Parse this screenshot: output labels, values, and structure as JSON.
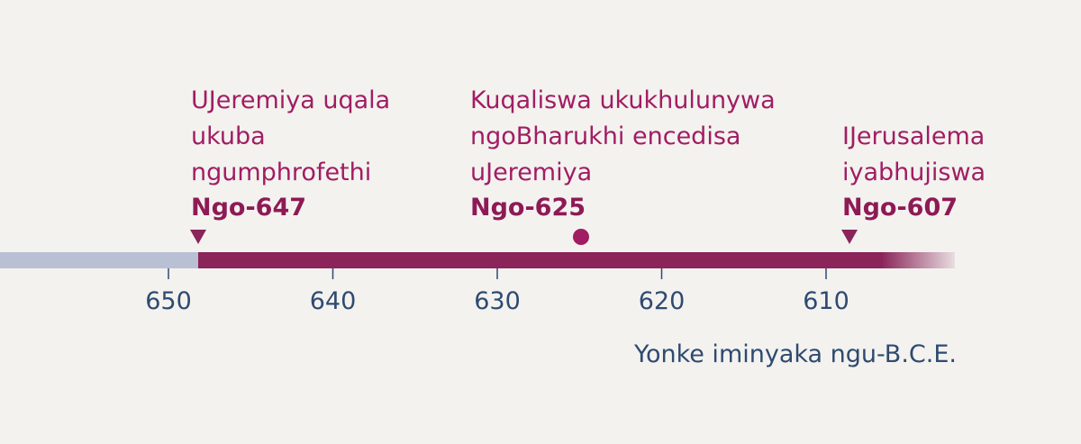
{
  "events": [
    {
      "lines": [
        "UJeremiya uqala",
        "ukuba",
        "ngumphrofethi"
      ],
      "date": "Ngo-647"
    },
    {
      "lines": [
        "Kuqaliswa ukukhulunywa",
        "ngoBharukhi encedisa",
        "uJeremiya"
      ],
      "date": "Ngo-625"
    },
    {
      "lines": [
        "IJerusalema",
        "iyabhujiswa"
      ],
      "date": "Ngo-607"
    }
  ],
  "axis": {
    "ticks": [
      "650",
      "640",
      "630",
      "620",
      "610"
    ],
    "caption": "Yonke iminyaka ngu-B.C.E."
  }
}
